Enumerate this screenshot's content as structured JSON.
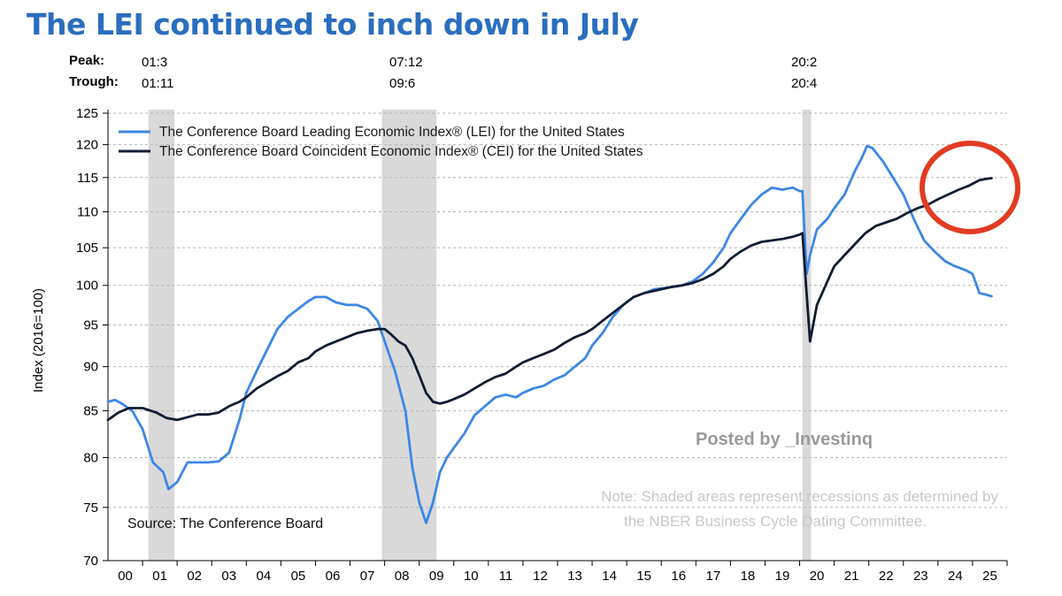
{
  "headline": "The LEI continued to inch down in July",
  "peak_trough": {
    "peak_label": "Peak:",
    "trough_label": "Trough:",
    "recessions": [
      {
        "peak": "01:3",
        "trough": "01:11"
      },
      {
        "peak": "07:12",
        "trough": "09:6"
      },
      {
        "peak": "20:2",
        "trough": "20:4"
      }
    ]
  },
  "colors": {
    "lei": "#3d87e6",
    "cei": "#101c33",
    "highlight": "#e23b22",
    "recession": "#d9d9d9",
    "title": "#2a6ebf"
  },
  "chart_data": {
    "type": "line",
    "title": "",
    "ylabel": "Index (2016=100)",
    "xlabel": "",
    "ylim": [
      70,
      125
    ],
    "yticks": [
      70,
      75,
      80,
      85,
      90,
      95,
      100,
      105,
      110,
      115,
      120,
      125
    ],
    "xlim": [
      2000.0,
      2026.0
    ],
    "xtick_labels": [
      "00",
      "01",
      "02",
      "03",
      "04",
      "05",
      "06",
      "07",
      "08",
      "09",
      "10",
      "11",
      "12",
      "13",
      "14",
      "15",
      "16",
      "17",
      "18",
      "19",
      "20",
      "21",
      "22",
      "23",
      "24",
      "25"
    ],
    "recession_bands": [
      [
        2001.17,
        2001.92
      ],
      [
        2007.92,
        2009.5
      ],
      [
        2020.08,
        2020.33
      ]
    ],
    "legend": [
      "The Conference Board Leading Economic Index® (LEI) for the United States",
      "The Conference Board Coincident Economic Index® (CEI) for the United States"
    ],
    "series": [
      {
        "name": "LEI",
        "x": [
          2000.0,
          2000.2,
          2000.4,
          2000.7,
          2001.0,
          2001.3,
          2001.6,
          2001.75,
          2002.0,
          2002.3,
          2002.6,
          2002.9,
          2003.2,
          2003.5,
          2003.8,
          2004.0,
          2004.3,
          2004.6,
          2004.9,
          2005.2,
          2005.5,
          2005.8,
          2006.0,
          2006.3,
          2006.6,
          2006.9,
          2007.2,
          2007.5,
          2007.8,
          2008.0,
          2008.3,
          2008.6,
          2008.8,
          2009.0,
          2009.2,
          2009.4,
          2009.6,
          2009.8,
          2010.0,
          2010.3,
          2010.6,
          2010.9,
          2011.2,
          2011.5,
          2011.8,
          2012.0,
          2012.3,
          2012.6,
          2012.9,
          2013.2,
          2013.5,
          2013.8,
          2014.0,
          2014.3,
          2014.6,
          2014.9,
          2015.2,
          2015.5,
          2015.8,
          2016.0,
          2016.3,
          2016.6,
          2016.9,
          2017.2,
          2017.5,
          2017.8,
          2018.0,
          2018.3,
          2018.6,
          2018.9,
          2019.2,
          2019.5,
          2019.8,
          2020.0,
          2020.08,
          2020.2,
          2020.3,
          2020.5,
          2020.8,
          2021.0,
          2021.3,
          2021.6,
          2021.8,
          2021.95,
          2022.1,
          2022.4,
          2022.7,
          2023.0,
          2023.3,
          2023.6,
          2023.9,
          2024.2,
          2024.5,
          2024.8,
          2025.0,
          2025.2,
          2025.4,
          2025.55
        ],
        "values": [
          86.0,
          86.2,
          85.8,
          85.0,
          83.0,
          79.5,
          78.5,
          76.8,
          77.5,
          79.5,
          79.5,
          79.5,
          79.6,
          80.5,
          84.0,
          87.0,
          89.5,
          92.0,
          94.5,
          96.0,
          97.0,
          98.0,
          98.5,
          98.5,
          97.8,
          97.5,
          97.5,
          97.0,
          95.5,
          93.0,
          89.5,
          85.0,
          79.0,
          75.5,
          73.5,
          75.5,
          78.5,
          80.0,
          81.0,
          82.5,
          84.5,
          85.5,
          86.5,
          86.8,
          86.5,
          87.0,
          87.5,
          87.8,
          88.5,
          89.0,
          90.0,
          91.0,
          92.5,
          94.0,
          96.0,
          97.5,
          98.5,
          99.0,
          99.5,
          99.6,
          99.8,
          100.0,
          100.5,
          101.5,
          103.0,
          105.0,
          107.0,
          109.0,
          111.0,
          112.5,
          113.5,
          113.2,
          113.5,
          113.0,
          113.0,
          101.5,
          104.0,
          107.5,
          109.0,
          110.5,
          112.5,
          116.0,
          118.0,
          119.8,
          119.5,
          117.5,
          115.0,
          112.5,
          109.0,
          106.0,
          104.5,
          103.2,
          102.5,
          102.0,
          101.5,
          99.0,
          98.8,
          98.6
        ]
      },
      {
        "name": "CEI",
        "x": [
          2000.0,
          2000.3,
          2000.6,
          2001.0,
          2001.4,
          2001.7,
          2002.0,
          2002.3,
          2002.6,
          2002.9,
          2003.2,
          2003.5,
          2003.8,
          2004.0,
          2004.3,
          2004.6,
          2004.9,
          2005.2,
          2005.5,
          2005.8,
          2006.0,
          2006.3,
          2006.6,
          2006.9,
          2007.2,
          2007.5,
          2007.8,
          2008.0,
          2008.2,
          2008.4,
          2008.6,
          2008.8,
          2009.0,
          2009.2,
          2009.4,
          2009.6,
          2009.8,
          2010.0,
          2010.3,
          2010.6,
          2010.9,
          2011.2,
          2011.5,
          2011.8,
          2012.0,
          2012.3,
          2012.6,
          2012.9,
          2013.2,
          2013.5,
          2013.8,
          2014.0,
          2014.3,
          2014.6,
          2014.9,
          2015.2,
          2015.5,
          2015.8,
          2016.0,
          2016.3,
          2016.6,
          2016.9,
          2017.2,
          2017.5,
          2017.8,
          2018.0,
          2018.3,
          2018.6,
          2018.9,
          2019.2,
          2019.5,
          2019.8,
          2020.0,
          2020.08,
          2020.2,
          2020.3,
          2020.5,
          2020.8,
          2021.0,
          2021.3,
          2021.6,
          2021.9,
          2022.2,
          2022.5,
          2022.8,
          2023.1,
          2023.4,
          2023.7,
          2024.0,
          2024.3,
          2024.6,
          2024.9,
          2025.2,
          2025.4,
          2025.55
        ],
        "values": [
          84.0,
          84.8,
          85.3,
          85.3,
          84.8,
          84.2,
          84.0,
          84.3,
          84.6,
          84.6,
          84.8,
          85.5,
          86.0,
          86.5,
          87.5,
          88.2,
          88.9,
          89.5,
          90.5,
          91.0,
          91.8,
          92.5,
          93.0,
          93.5,
          94.0,
          94.3,
          94.5,
          94.5,
          93.8,
          93.0,
          92.5,
          91.0,
          89.0,
          87.0,
          86.0,
          85.8,
          86.0,
          86.3,
          86.8,
          87.5,
          88.2,
          88.8,
          89.2,
          90.0,
          90.5,
          91.0,
          91.5,
          92.0,
          92.8,
          93.5,
          94.0,
          94.5,
          95.5,
          96.5,
          97.5,
          98.5,
          99.0,
          99.3,
          99.5,
          99.8,
          100.0,
          100.3,
          100.8,
          101.5,
          102.5,
          103.5,
          104.5,
          105.3,
          105.8,
          106.0,
          106.2,
          106.5,
          106.8,
          107.0,
          99.0,
          93.0,
          97.5,
          100.5,
          102.5,
          104.0,
          105.5,
          107.0,
          108.0,
          108.5,
          109.0,
          109.8,
          110.5,
          111.0,
          111.8,
          112.5,
          113.2,
          113.8,
          114.6,
          114.8,
          114.9
        ]
      }
    ],
    "annotations": {
      "watermark": "Posted by _Investinq",
      "note_line1": "Note: Shaded areas represent recessions as determined by",
      "note_line2": "the NBER Business Cycle Dating Committee.",
      "source": "Source: The Conference Board"
    }
  }
}
